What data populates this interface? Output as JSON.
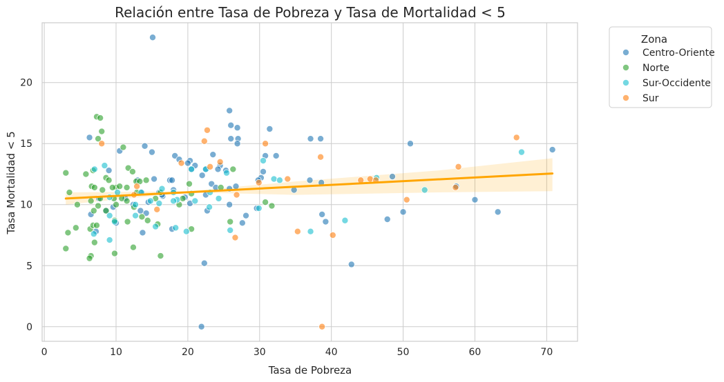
{
  "chart_data": {
    "type": "scatter",
    "title": "Relación entre Tasa de Pobreza y Tasa de Mortalidad < 5",
    "xlabel": "Tasa de Pobreza",
    "ylabel": "Tasa Mortalidad < 5",
    "xlim": [
      -0.3,
      74.3
    ],
    "ylim": [
      -1.2,
      24.9
    ],
    "xticks": [
      0,
      10,
      20,
      30,
      40,
      50,
      60,
      70
    ],
    "yticks": [
      0,
      5,
      10,
      15,
      20
    ],
    "grid": true,
    "legend": {
      "title": "Zona",
      "placement": "outside-top-right"
    },
    "regression": {
      "x": [
        3.0,
        70.8
      ],
      "y": [
        10.5,
        12.55
      ],
      "ci_lower": [
        10.0,
        11.0,
        10.8,
        11.0,
        11.1
      ],
      "ci_upper": [
        11.0,
        11.1,
        11.9,
        12.8,
        13.8
      ],
      "ci_x": [
        3.0,
        20.0,
        35.0,
        55.0,
        70.8
      ],
      "color": "#ffa500"
    },
    "series": [
      {
        "name": "Centro-Oriente",
        "color": "#1f77b4",
        "points": [
          [
            15.1,
            23.7
          ],
          [
            25.8,
            17.7
          ],
          [
            26.9,
            16.3
          ],
          [
            31.4,
            16.2
          ],
          [
            26.0,
            16.5
          ],
          [
            6.3,
            15.5
          ],
          [
            37.1,
            15.4
          ],
          [
            38.5,
            15.4
          ],
          [
            26.0,
            15.4
          ],
          [
            27.0,
            15.4
          ],
          [
            51.0,
            15.0
          ],
          [
            26.9,
            15.0
          ],
          [
            14.0,
            14.8
          ],
          [
            10.5,
            14.4
          ],
          [
            15.0,
            14.3
          ],
          [
            70.8,
            14.5
          ],
          [
            23.5,
            14.1
          ],
          [
            32.3,
            14.0
          ],
          [
            30.8,
            14.0
          ],
          [
            18.2,
            14.0
          ],
          [
            18.8,
            13.7
          ],
          [
            20.3,
            13.6
          ],
          [
            20.0,
            13.4
          ],
          [
            24.5,
            13.2
          ],
          [
            21.0,
            13.2
          ],
          [
            9.0,
            12.8
          ],
          [
            20.5,
            12.9
          ],
          [
            24.2,
            12.9
          ],
          [
            25.3,
            12.8
          ],
          [
            30.5,
            12.7
          ],
          [
            22.5,
            12.9
          ],
          [
            22.0,
            12.4
          ],
          [
            30.2,
            12.2
          ],
          [
            48.5,
            12.3
          ],
          [
            13.0,
            12.0
          ],
          [
            15.3,
            12.1
          ],
          [
            17.5,
            12.0
          ],
          [
            17.8,
            12.0
          ],
          [
            29.8,
            12.0
          ],
          [
            37.0,
            12.0
          ],
          [
            23.3,
            11.7
          ],
          [
            26.7,
            11.5
          ],
          [
            23.9,
            11.4
          ],
          [
            25.8,
            11.3
          ],
          [
            34.8,
            11.2
          ],
          [
            57.4,
            11.5
          ],
          [
            18.0,
            11.2
          ],
          [
            13.6,
            11.0
          ],
          [
            16.0,
            11.0
          ],
          [
            38.6,
            11.8
          ],
          [
            22.5,
            10.8
          ],
          [
            25.8,
            10.0
          ],
          [
            7.6,
            10.5
          ],
          [
            16.5,
            10.7
          ],
          [
            12.4,
            10.0
          ],
          [
            20.3,
            10.1
          ],
          [
            13.4,
            9.5
          ],
          [
            14.5,
            10.2
          ],
          [
            50.0,
            9.4
          ],
          [
            63.2,
            9.4
          ],
          [
            60.0,
            10.4
          ],
          [
            29.6,
            9.7
          ],
          [
            28.1,
            9.1
          ],
          [
            38.7,
            9.2
          ],
          [
            39.2,
            8.6
          ],
          [
            47.8,
            8.8
          ],
          [
            22.7,
            9.5
          ],
          [
            8.6,
            9.5
          ],
          [
            9.6,
            9.8
          ],
          [
            10.0,
            8.5
          ],
          [
            7.2,
            7.8
          ],
          [
            13.7,
            7.7
          ],
          [
            17.8,
            8.0
          ],
          [
            27.6,
            8.5
          ],
          [
            22.3,
            5.2
          ],
          [
            42.8,
            5.1
          ],
          [
            21.9,
            0.0
          ],
          [
            6.5,
            9.2
          ],
          [
            11.3,
            10.5
          ],
          [
            14.2,
            9.3
          ],
          [
            16.4,
            10.8
          ],
          [
            19.6,
            10.6
          ]
        ]
      },
      {
        "name": "Norte",
        "color": "#2ca02c",
        "points": [
          [
            7.3,
            17.2
          ],
          [
            7.8,
            17.1
          ],
          [
            8.0,
            16.0
          ],
          [
            7.5,
            15.4
          ],
          [
            11.0,
            14.7
          ],
          [
            11.7,
            13.0
          ],
          [
            12.3,
            12.7
          ],
          [
            3.0,
            12.6
          ],
          [
            5.8,
            12.5
          ],
          [
            8.6,
            12.2
          ],
          [
            9.0,
            12.0
          ],
          [
            12.8,
            11.9
          ],
          [
            13.3,
            11.9
          ],
          [
            6.6,
            11.5
          ],
          [
            7.0,
            11.4
          ],
          [
            10.0,
            11.4
          ],
          [
            10.5,
            11.5
          ],
          [
            9.5,
            11.4
          ],
          [
            11.5,
            11.4
          ],
          [
            14.2,
            12.0
          ],
          [
            16.2,
            11.0
          ],
          [
            20.2,
            11.7
          ],
          [
            20.5,
            10.9
          ],
          [
            24.6,
            11.4
          ],
          [
            26.3,
            12.9
          ],
          [
            30.8,
            10.2
          ],
          [
            31.7,
            9.9
          ],
          [
            3.5,
            11.0
          ],
          [
            6.5,
            10.3
          ],
          [
            7.8,
            10.5
          ],
          [
            8.1,
            11.2
          ],
          [
            10.0,
            10.0
          ],
          [
            10.8,
            10.5
          ],
          [
            11.5,
            10.3
          ],
          [
            12.9,
            11.0
          ],
          [
            15.5,
            10.5
          ],
          [
            18.8,
            10.0
          ],
          [
            4.6,
            10.0
          ],
          [
            7.5,
            9.9
          ],
          [
            8.6,
            9.5
          ],
          [
            9.7,
            10.5
          ],
          [
            12.5,
            9.8
          ],
          [
            13.6,
            9.0
          ],
          [
            14.4,
            8.7
          ],
          [
            19.3,
            10.5
          ],
          [
            6.9,
            9.5
          ],
          [
            9.8,
            8.7
          ],
          [
            3.3,
            7.7
          ],
          [
            4.4,
            8.1
          ],
          [
            6.4,
            8.0
          ],
          [
            6.8,
            8.3
          ],
          [
            7.3,
            8.3
          ],
          [
            11.6,
            8.6
          ],
          [
            15.8,
            8.4
          ],
          [
            20.5,
            8.0
          ],
          [
            12.4,
            6.5
          ],
          [
            7.0,
            6.9
          ],
          [
            3.0,
            6.4
          ],
          [
            9.8,
            6.0
          ],
          [
            16.2,
            5.8
          ],
          [
            6.5,
            5.8
          ],
          [
            6.3,
            5.6
          ],
          [
            25.9,
            8.6
          ],
          [
            6.8,
            12.8
          ]
        ]
      },
      {
        "name": "Sur-Occidente",
        "color": "#17becf",
        "points": [
          [
            8.4,
            13.2
          ],
          [
            7.0,
            12.9
          ],
          [
            20.5,
            12.9
          ],
          [
            22.5,
            12.9
          ],
          [
            32.0,
            12.1
          ],
          [
            32.8,
            12.0
          ],
          [
            46.3,
            12.2
          ],
          [
            25.4,
            12.6
          ],
          [
            16.4,
            11.3
          ],
          [
            18.0,
            11.0
          ],
          [
            23.1,
            11.0
          ],
          [
            30.5,
            13.6
          ],
          [
            9.1,
            10.6
          ],
          [
            10.2,
            11.0
          ],
          [
            12.7,
            10.0
          ],
          [
            13.5,
            11.0
          ],
          [
            14.8,
            10.3
          ],
          [
            18.5,
            10.4
          ],
          [
            21.0,
            10.3
          ],
          [
            24.3,
            10.5
          ],
          [
            53.0,
            11.2
          ],
          [
            66.5,
            14.3
          ],
          [
            9.8,
            8.6
          ],
          [
            12.7,
            9.1
          ],
          [
            16.0,
            10.1
          ],
          [
            18.0,
            10.3
          ],
          [
            29.9,
            9.7
          ],
          [
            9.1,
            9.1
          ],
          [
            6.9,
            7.6
          ],
          [
            15.5,
            8.2
          ],
          [
            18.3,
            8.1
          ],
          [
            19.8,
            7.8
          ],
          [
            25.9,
            7.9
          ],
          [
            37.1,
            7.8
          ],
          [
            41.9,
            8.7
          ],
          [
            9.1,
            7.1
          ],
          [
            23.0,
            9.8
          ]
        ]
      },
      {
        "name": "Sur",
        "color": "#ff7f0e",
        "points": [
          [
            22.7,
            16.1
          ],
          [
            8.0,
            15.0
          ],
          [
            22.3,
            15.2
          ],
          [
            30.8,
            15.0
          ],
          [
            65.8,
            15.5
          ],
          [
            38.5,
            13.9
          ],
          [
            19.1,
            13.4
          ],
          [
            24.5,
            13.5
          ],
          [
            23.1,
            13.1
          ],
          [
            57.7,
            13.1
          ],
          [
            33.9,
            12.1
          ],
          [
            44.1,
            12.0
          ],
          [
            45.4,
            12.1
          ],
          [
            46.2,
            12.0
          ],
          [
            12.9,
            11.5
          ],
          [
            29.9,
            11.8
          ],
          [
            26.8,
            10.8
          ],
          [
            50.5,
            10.4
          ],
          [
            57.3,
            11.4
          ],
          [
            35.3,
            7.8
          ],
          [
            40.2,
            7.5
          ],
          [
            26.6,
            7.3
          ],
          [
            38.7,
            0.0
          ],
          [
            15.7,
            9.6
          ],
          [
            12.5,
            10.8
          ]
        ]
      }
    ]
  }
}
